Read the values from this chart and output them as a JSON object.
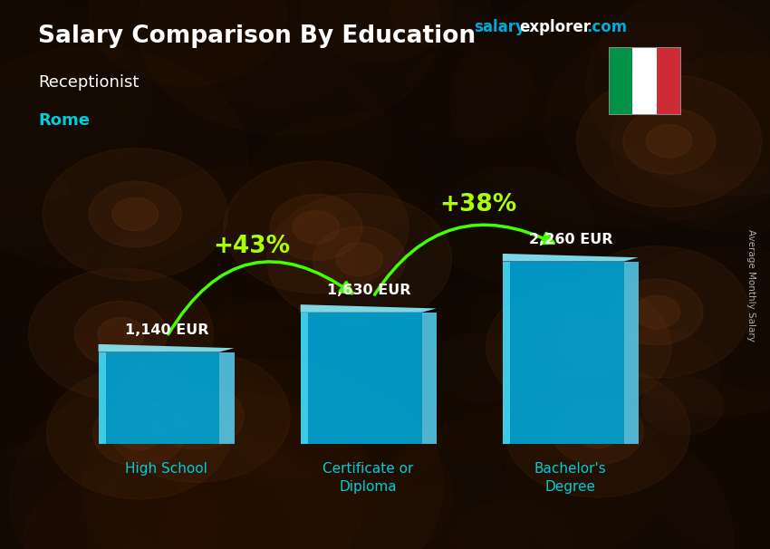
{
  "title": "Salary Comparison By Education",
  "subtitle1": "Receptionist",
  "subtitle2": "Rome",
  "ylabel": "Average Monthly Salary",
  "website_part1": "salary",
  "website_part2": "explorer",
  "website_part3": ".com",
  "categories": [
    "High School",
    "Certificate or\nDiploma",
    "Bachelor's\nDegree"
  ],
  "values": [
    1140,
    1630,
    2260
  ],
  "value_labels": [
    "1,140 EUR",
    "1,630 EUR",
    "2,260 EUR"
  ],
  "pct_labels": [
    "+43%",
    "+38%"
  ],
  "title_color": "#ffffff",
  "subtitle1_color": "#ffffff",
  "subtitle2_color": "#00ccdd",
  "category_color": "#00ccdd",
  "value_label_color": "#ffffff",
  "pct_color": "#aaff00",
  "bar_face_color": "#00aadd",
  "bar_side_color": "#0077aa",
  "bar_top_color": "#55ddff",
  "bar_highlight_color": "#44ccee",
  "arrow_color": "#44ff00",
  "bg_overlay_color": "#000000",
  "bg_overlay_alpha": 0.45,
  "website_color1": "#00aadd",
  "website_color2": "#ffffff",
  "flag_green": "#009246",
  "flag_white": "#ffffff",
  "flag_red": "#ce2b37",
  "ylabel_color": "#aaaaaa",
  "bar_alpha": 0.88
}
